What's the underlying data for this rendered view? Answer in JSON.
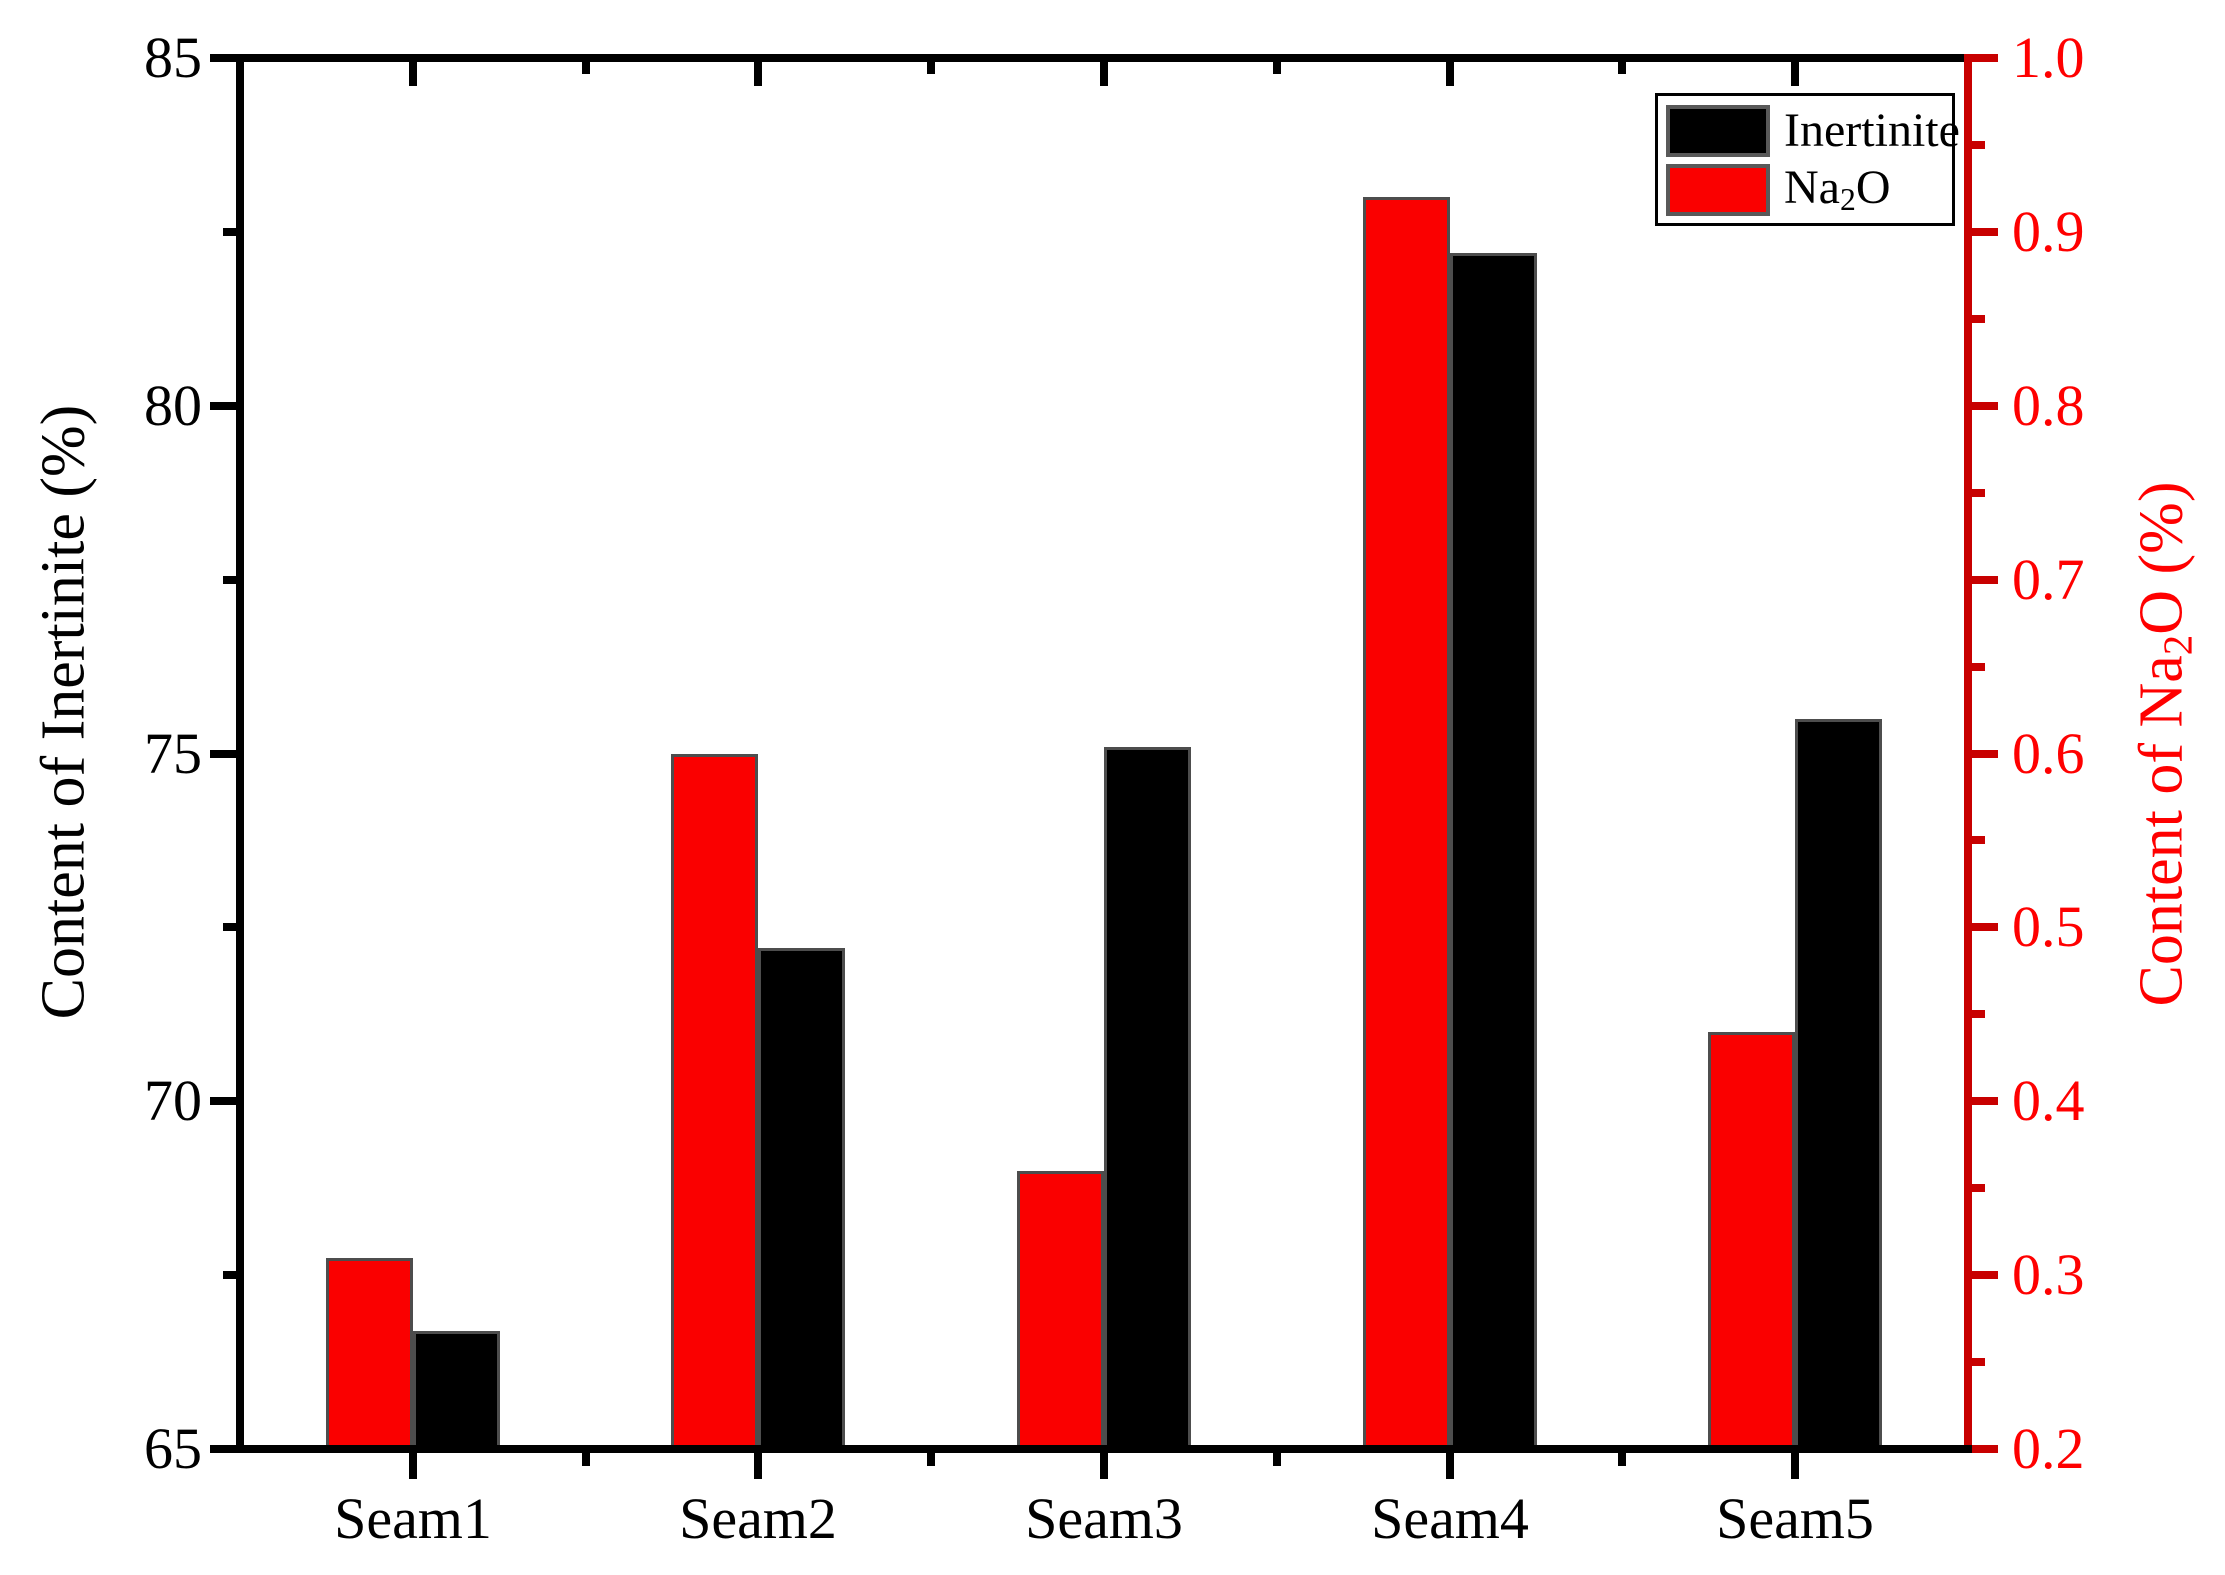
{
  "figure": {
    "background": "#FFFFFF"
  },
  "chart_data": {
    "type": "bar",
    "title": "",
    "categories": [
      "Seam1",
      "Seam2",
      "Seam3",
      "Seam4",
      "Seam5"
    ],
    "series": [
      {
        "name": "Inertinite",
        "axis": "left",
        "color": "#000000",
        "values": [
          66.7,
          72.2,
          75.1,
          82.2,
          75.5
        ]
      },
      {
        "name": "Na2O",
        "axis": "right",
        "color": "#FA0000",
        "values": [
          0.31,
          0.6,
          0.36,
          0.92,
          0.44
        ]
      }
    ],
    "bar_pair_order": "Na2O red bar on left, Inertinite black bar on right of each pair",
    "bar_border_color": "#4D4D4D",
    "left_axis": {
      "label": "Content of Inertinite (%)",
      "min": 65,
      "max": 85,
      "major_ticks": [
        85,
        80,
        75,
        70,
        65
      ],
      "tick_labels": [
        "85",
        "80",
        "75",
        "70",
        "65"
      ],
      "minor_ticks": [
        82.5,
        77.5,
        72.5,
        67.5
      ],
      "color": "#000000"
    },
    "right_axis": {
      "label_pre": "Content of Na",
      "label_sub": "2",
      "label_post": "O (%)",
      "min": 0.2,
      "max": 1.0,
      "major_ticks": [
        1.0,
        0.9,
        0.8,
        0.7,
        0.6,
        0.5,
        0.4,
        0.3,
        0.2
      ],
      "tick_labels": [
        "1.0",
        "0.9",
        "0.8",
        "0.7",
        "0.6",
        "0.5",
        "0.4",
        "0.3",
        "0.2"
      ],
      "minor_ticks": [
        0.95,
        0.85,
        0.75,
        0.65,
        0.55,
        0.45,
        0.35,
        0.25
      ],
      "line_color": "#C80000",
      "text_color": "#FF0000"
    },
    "legend": {
      "position": "top-right",
      "items": [
        {
          "label": "Inertinite",
          "color": "#000000"
        },
        {
          "label_pre": "Na",
          "label_sub": "2",
          "label_post": "O",
          "color": "#FA0000"
        }
      ]
    },
    "grid": false
  }
}
